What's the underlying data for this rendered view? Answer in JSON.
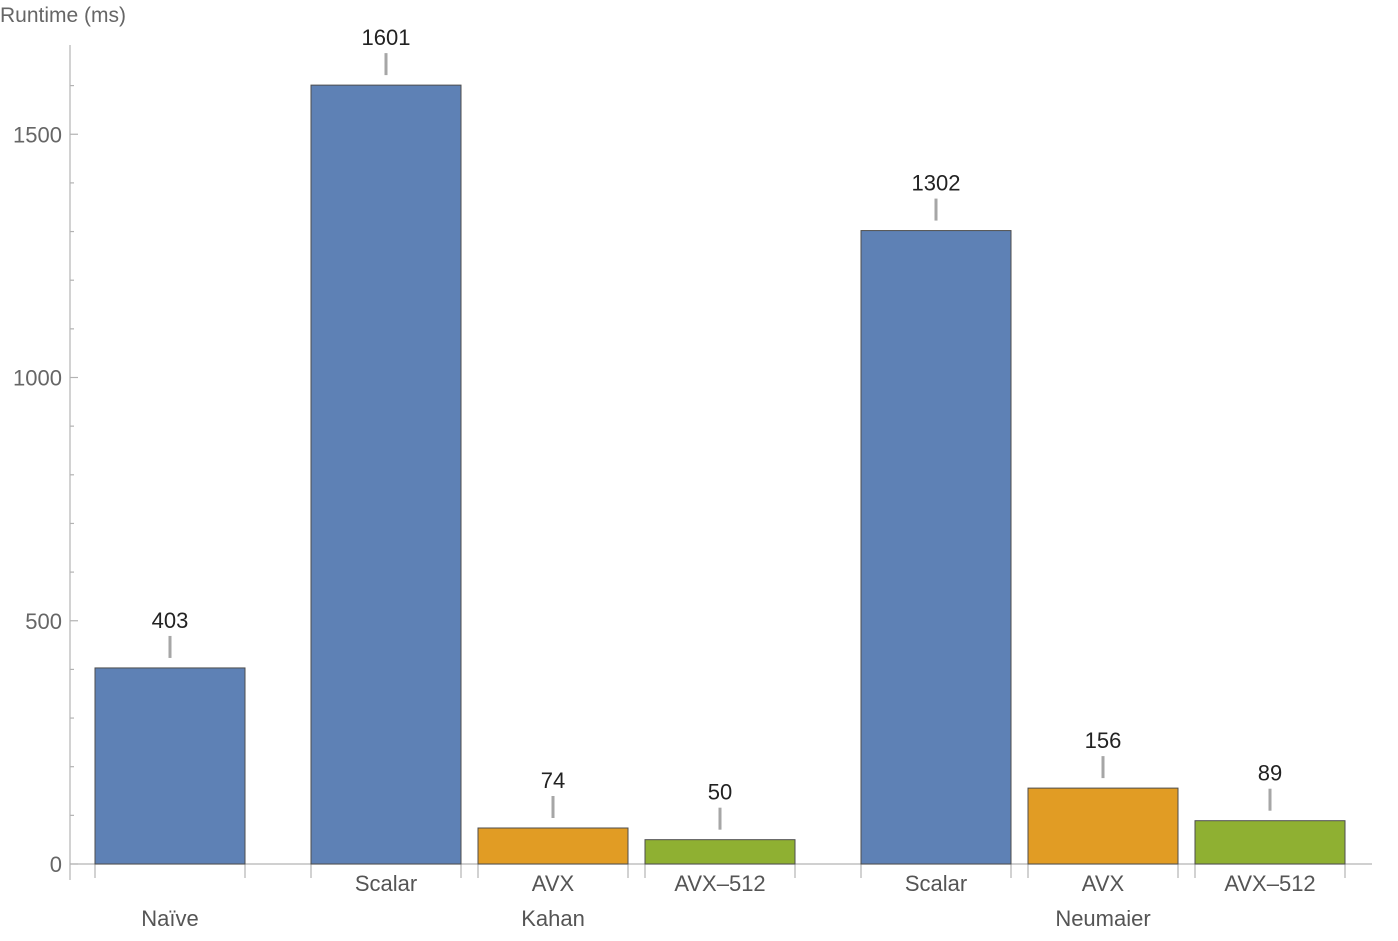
{
  "chart_data": {
    "type": "bar",
    "title": "",
    "ylabel": "Runtime (ms)",
    "xlabel": "",
    "ylim": [
      0,
      1680
    ],
    "y_ticks": [
      0,
      500,
      1000,
      1500
    ],
    "grid": false,
    "groups": [
      {
        "label": "Naïve",
        "bars": [
          {
            "label": "",
            "value": 403,
            "color": "#5e81b5"
          }
        ]
      },
      {
        "label": "Kahan",
        "bars": [
          {
            "label": "Scalar",
            "value": 1601,
            "color": "#5e81b5"
          },
          {
            "label": "AVX",
            "value": 74,
            "color": "#e19c24"
          },
          {
            "label": "AVX-512",
            "value": 50,
            "color": "#8fb032"
          }
        ]
      },
      {
        "label": "Neumaier",
        "bars": [
          {
            "label": "Scalar",
            "value": 1302,
            "color": "#5e81b5"
          },
          {
            "label": "AVX",
            "value": 156,
            "color": "#e19c24"
          },
          {
            "label": "AVX-512",
            "value": 89,
            "color": "#8fb032"
          }
        ]
      }
    ]
  }
}
